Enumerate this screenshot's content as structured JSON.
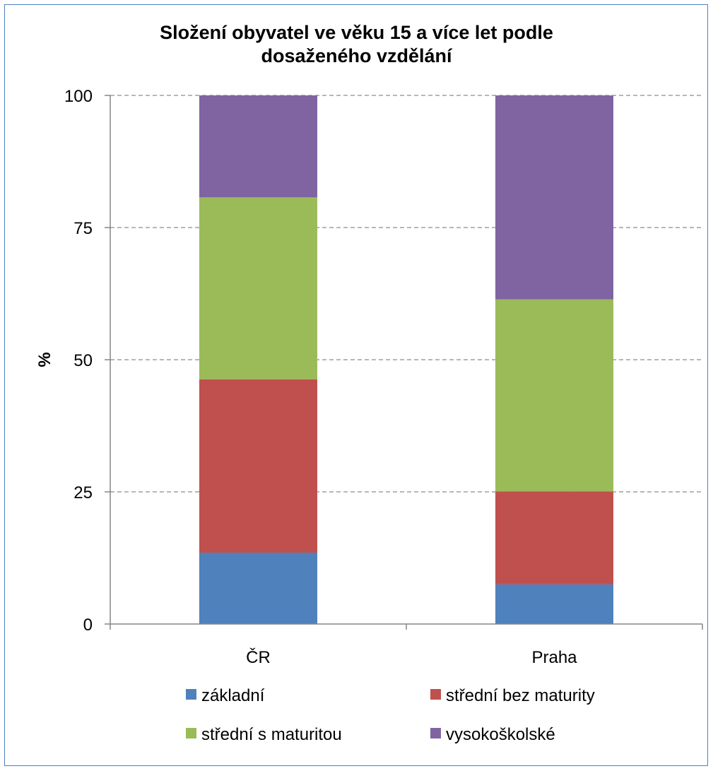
{
  "chart_data": {
    "type": "bar",
    "stacked": true,
    "title": [
      "Složení obyvatel ve věku 15 a více let podle",
      "dosaženého vzdělání"
    ],
    "ylabel": "%",
    "xlabel": "",
    "ylim": [
      0,
      100
    ],
    "yticks": [
      "0",
      "25",
      "50",
      "75",
      "100"
    ],
    "grid": true,
    "legend_position": "bottom",
    "categories": [
      "ČR",
      "Praha"
    ],
    "series": [
      {
        "name": "základní",
        "color": "#4f81bd",
        "values": [
          13.5,
          7.5
        ]
      },
      {
        "name": "střední bez maturity",
        "color": "#c0504d",
        "values": [
          32.8,
          17.6
        ]
      },
      {
        "name": "střední s maturitou",
        "color": "#9bbb59",
        "values": [
          34.4,
          36.3
        ]
      },
      {
        "name": "vysokoškolské",
        "color": "#8064a2",
        "values": [
          19.3,
          38.6
        ]
      }
    ]
  }
}
